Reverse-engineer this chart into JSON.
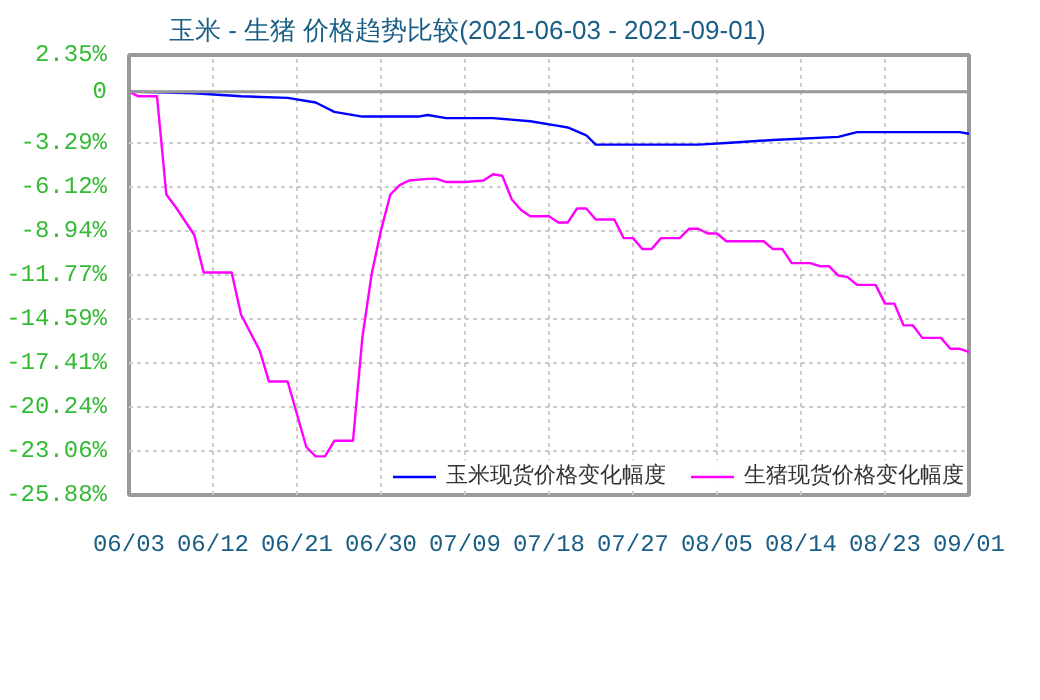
{
  "chart_data": {
    "type": "line",
    "title": "玉米 - 生猪 价格趋势比较(2021-06-03 - 2021-09-01)",
    "series": [
      {
        "name": "玉米现货价格变化幅度",
        "color": "#0000ff",
        "x": [
          "2021-06-03",
          "2021-06-10",
          "2021-06-15",
          "2021-06-20",
          "2021-06-23",
          "2021-06-25",
          "2021-06-28",
          "2021-07-04",
          "2021-07-05",
          "2021-07-07",
          "2021-07-12",
          "2021-07-16",
          "2021-07-19",
          "2021-07-20",
          "2021-07-22",
          "2021-07-23",
          "2021-08-03",
          "2021-08-06",
          "2021-08-11",
          "2021-08-18",
          "2021-08-20",
          "2021-08-31",
          "2021-09-01"
        ],
        "values": [
          0,
          -0.1,
          -0.3,
          -0.4,
          -0.7,
          -1.3,
          -1.6,
          -1.6,
          -1.5,
          -1.7,
          -1.7,
          -1.9,
          -2.2,
          -2.3,
          -2.8,
          -3.4,
          -3.4,
          -3.3,
          -3.1,
          -2.9,
          -2.6,
          -2.6,
          -2.7
        ]
      },
      {
        "name": "生猪现货价格变化幅度",
        "color": "#ff00ff",
        "x": [
          "2021-06-03",
          "2021-06-04",
          "2021-06-06",
          "2021-06-07",
          "2021-06-08",
          "2021-06-10",
          "2021-06-11",
          "2021-06-14",
          "2021-06-15",
          "2021-06-17",
          "2021-06-18",
          "2021-06-20",
          "2021-06-22",
          "2021-06-23",
          "2021-06-24",
          "2021-06-25",
          "2021-06-27",
          "2021-06-28",
          "2021-06-29",
          "2021-06-30",
          "2021-07-01",
          "2021-07-02",
          "2021-07-03",
          "2021-07-05",
          "2021-07-06",
          "2021-07-07",
          "2021-07-09",
          "2021-07-11",
          "2021-07-12",
          "2021-07-13",
          "2021-07-14",
          "2021-07-15",
          "2021-07-16",
          "2021-07-18",
          "2021-07-19",
          "2021-07-20",
          "2021-07-21",
          "2021-07-22",
          "2021-07-23",
          "2021-07-25",
          "2021-07-26",
          "2021-07-27",
          "2021-07-28",
          "2021-07-29",
          "2021-07-30",
          "2021-08-01",
          "2021-08-02",
          "2021-08-03",
          "2021-08-04",
          "2021-08-05",
          "2021-08-06",
          "2021-08-10",
          "2021-08-11",
          "2021-08-12",
          "2021-08-13",
          "2021-08-15",
          "2021-08-16",
          "2021-08-17",
          "2021-08-18",
          "2021-08-19",
          "2021-08-20",
          "2021-08-22",
          "2021-08-23",
          "2021-08-24",
          "2021-08-25",
          "2021-08-26",
          "2021-08-27",
          "2021-08-29",
          "2021-08-30",
          "2021-08-31",
          "2021-09-01"
        ],
        "values": [
          0,
          -0.3,
          -0.3,
          -6.6,
          -7.4,
          -9.2,
          -11.6,
          -11.6,
          -14.3,
          -16.6,
          -18.6,
          -18.6,
          -22.8,
          -23.4,
          -23.4,
          -22.4,
          -22.4,
          -15.8,
          -11.7,
          -8.9,
          -6.6,
          -6.0,
          -5.7,
          -5.6,
          -5.6,
          -5.8,
          -5.8,
          -5.7,
          -5.3,
          -5.4,
          -6.9,
          -7.6,
          -8.0,
          -8.0,
          -8.4,
          -8.4,
          -7.5,
          -7.5,
          -8.2,
          -8.2,
          -9.4,
          -9.4,
          -10.1,
          -10.1,
          -9.4,
          -9.4,
          -8.8,
          -8.8,
          -9.1,
          -9.1,
          -9.6,
          -9.6,
          -10.1,
          -10.1,
          -11.0,
          -11.0,
          -11.2,
          -11.2,
          -11.8,
          -11.9,
          -12.4,
          -12.4,
          -13.6,
          -13.6,
          -15.0,
          -15.0,
          -15.8,
          -15.8,
          -16.5,
          -16.5,
          -16.7
        ]
      }
    ],
    "xlim": [
      "2021-06-03",
      "2021-09-01"
    ],
    "xticks": [
      {
        "value": "2021-06-03",
        "label": "06/03"
      },
      {
        "value": "2021-06-12",
        "label": "06/12"
      },
      {
        "value": "2021-06-21",
        "label": "06/21"
      },
      {
        "value": "2021-06-30",
        "label": "06/30"
      },
      {
        "value": "2021-07-09",
        "label": "07/09"
      },
      {
        "value": "2021-07-18",
        "label": "07/18"
      },
      {
        "value": "2021-07-27",
        "label": "07/27"
      },
      {
        "value": "2021-08-05",
        "label": "08/05"
      },
      {
        "value": "2021-08-14",
        "label": "08/14"
      },
      {
        "value": "2021-08-23",
        "label": "08/23"
      },
      {
        "value": "2021-09-01",
        "label": "09/01"
      }
    ],
    "ylim": [
      -25.88,
      2.35
    ],
    "yticks": [
      {
        "value": 2.35,
        "label": "2.35%"
      },
      0,
      {
        "value": -3.29,
        "label": "-3.29%"
      },
      {
        "value": -6.12,
        "label": "-6.12%"
      },
      {
        "value": -8.94,
        "label": "-8.94%"
      },
      {
        "value": -11.77,
        "label": "-11.77%"
      },
      {
        "value": -14.59,
        "label": "-14.59%"
      },
      {
        "value": -17.41,
        "label": "-17.41%"
      },
      {
        "value": -20.24,
        "label": "-20.24%"
      },
      {
        "value": -23.06,
        "label": "-23.06%"
      },
      {
        "value": -25.88,
        "label": "-25.88%"
      }
    ],
    "ref_lines": [
      {
        "axis": "y",
        "value": 0,
        "color": "#999999"
      }
    ],
    "grid": true,
    "legend": "bottom",
    "marker": "none",
    "line_style": "solid"
  }
}
